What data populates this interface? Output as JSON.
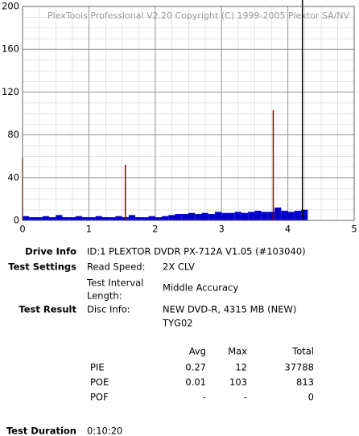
{
  "chart_data": {
    "type": "scan",
    "watermark": "PlexTools Professional V2.20 Copyright (C) 1999-2005 Plextor SA/NV",
    "xlim": [
      0,
      5
    ],
    "xticks": [
      0,
      1,
      2,
      3,
      4,
      5
    ],
    "ylim": [
      0,
      200
    ],
    "yticks": [
      0,
      40,
      80,
      120,
      160,
      200
    ],
    "grid": true,
    "series": [
      {
        "kind": "bars",
        "color": "#0000cc",
        "x": [
          0,
          0.1,
          0.2,
          0.3,
          0.4,
          0.5,
          0.6,
          0.7,
          0.8,
          0.9,
          1,
          1.1,
          1.2,
          1.3,
          1.4,
          1.5,
          1.6,
          1.7,
          1.8,
          1.9,
          2,
          2.1,
          2.2,
          2.3,
          2.4,
          2.5,
          2.6,
          2.7,
          2.8,
          2.9,
          3,
          3.1,
          3.2,
          3.3,
          3.4,
          3.5,
          3.6,
          3.7,
          3.8,
          3.9,
          4,
          4.1,
          4.2
        ],
        "values": [
          4,
          3,
          3,
          4,
          3,
          5,
          3,
          3,
          4,
          3,
          3,
          4,
          3,
          3,
          4,
          3,
          5,
          3,
          3,
          4,
          3,
          4,
          5,
          6,
          6,
          7,
          6,
          7,
          6,
          8,
          7,
          7,
          8,
          7,
          8,
          9,
          8,
          8,
          12,
          9,
          8,
          9,
          10
        ]
      },
      {
        "kind": "spikes",
        "color": "#990000",
        "x": [
          0,
          1.55,
          3.78
        ],
        "values": [
          58,
          52,
          103
        ]
      }
    ],
    "end_marker": {
      "x": 4.22,
      "color": "#000000"
    }
  },
  "info": {
    "drive_info": {
      "label": "Drive Info",
      "value": "ID:1 PLEXTOR DVDR PX-712A V1.05 (#103040)"
    },
    "test_settings": {
      "label": "Test Settings",
      "read_speed_label": "Read Speed:",
      "read_speed": "2X CLV",
      "interval_label_lines": [
        "Test Interval",
        "Length:"
      ],
      "interval": "Middle Accuracy"
    },
    "test_result": {
      "label": "Test Result",
      "disc_info_label": "Disc Info:",
      "disc_info_lines": [
        "NEW DVD-R, 4315 MB (NEW)",
        "TYG02"
      ]
    },
    "table": {
      "columns": [
        "Avg",
        "Max",
        "Total"
      ],
      "rows": [
        [
          "PIE",
          "0.27",
          "12",
          "37788"
        ],
        [
          "POE",
          "0.01",
          "103",
          "813"
        ],
        [
          "POF",
          "-",
          "-",
          "0"
        ]
      ]
    },
    "test_duration": {
      "label": "Test Duration",
      "value": "0:10:20"
    }
  }
}
